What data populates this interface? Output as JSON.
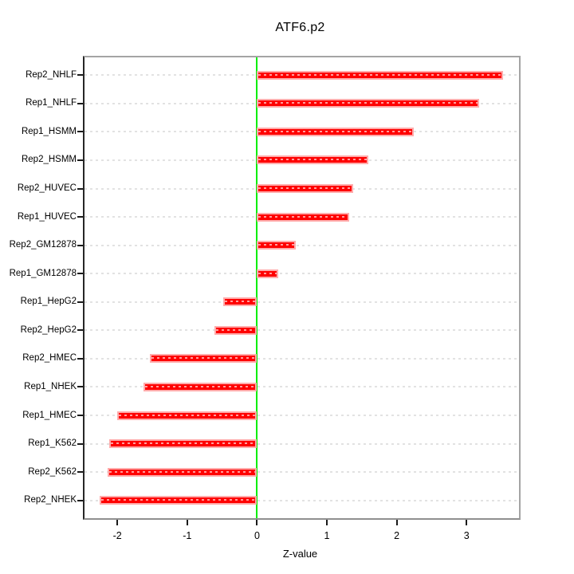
{
  "title": "ATF6.p2",
  "chart_data": {
    "type": "bar",
    "orientation": "horizontal",
    "title": "ATF6.p2",
    "xlabel": "Z-value",
    "categories": [
      "Rep2_NHLF",
      "Rep1_NHLF",
      "Rep1_HSMM",
      "Rep2_HSMM",
      "Rep2_HUVEC",
      "Rep1_HUVEC",
      "Rep2_GM12878",
      "Rep1_GM12878",
      "Rep1_HepG2",
      "Rep2_HepG2",
      "Rep2_HMEC",
      "Rep1_NHEK",
      "Rep1_HMEC",
      "Rep1_K562",
      "Rep2_K562",
      "Rep2_NHEK"
    ],
    "values": [
      3.52,
      3.18,
      2.24,
      1.59,
      1.38,
      1.32,
      0.55,
      0.3,
      -0.48,
      -0.61,
      -1.53,
      -1.62,
      -2.0,
      -2.12,
      -2.14,
      -2.25
    ],
    "xticks": [
      -2,
      -1,
      0,
      1,
      2,
      3
    ],
    "xlim": [
      -2.47,
      3.75
    ],
    "zero_reference_line": 0,
    "grid": "horizontal-dashed",
    "legend": "none",
    "colors": {
      "bar": "#ff0000",
      "bar_halo": "#ffabab",
      "bar_inner_dash": "#ff9d9d",
      "zero_line": "#00ee00",
      "gridline": "#e2e2e2",
      "box_border": "#a4a4a4",
      "left_axis": "#262626",
      "tick": "#1a1a1a",
      "text": "#000000",
      "background": "#ffffff"
    }
  }
}
